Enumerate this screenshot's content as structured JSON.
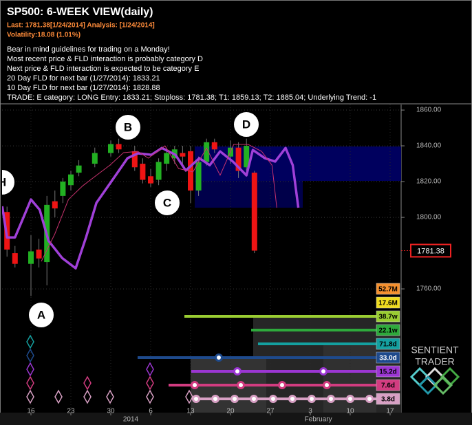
{
  "header": {
    "title": "SP500: 6-WEEK VIEW(daily)",
    "last": "Last: 1781.38[1/24/2014] Analysis: [1/24/2014]",
    "volatility": "Volatility:18.08 (1.01%)",
    "notes": [
      "Bear in mind guidelines for trading on a Monday!",
      "Most recent price & FLD interaction is probably category D",
      "Next price & FLD interaction is expected to be category E",
      "20 Day FLD for next bar (1/27/2014): 1833.21",
      "10 Day FLD for next bar (1/27/2014): 1828.88",
      "TRADE: E category: LONG Entry: 1833.21; Stoploss: 1781.38; T1: 1859.13; T2: 1885.04; Underlying Trend: -1"
    ]
  },
  "chart_data": {
    "type": "candlestick",
    "xlim": [
      -3.62,
      46.38
    ],
    "ylim": [
      1690.8,
      1863.1
    ],
    "grid": true,
    "xticks": [
      {
        "value": 0,
        "label": "16"
      },
      {
        "value": 5,
        "label": "23"
      },
      {
        "value": 10,
        "label": "30"
      },
      {
        "value": 15,
        "label": "6"
      },
      {
        "value": 20,
        "label": "13"
      },
      {
        "value": 25,
        "label": "20"
      },
      {
        "value": 30,
        "label": "27"
      },
      {
        "value": 35,
        "label": "3"
      },
      {
        "value": 40,
        "label": "10"
      },
      {
        "value": 45,
        "label": "17"
      }
    ],
    "period_labels": [
      {
        "value": 12.5,
        "label": "2014"
      },
      {
        "value": 36,
        "label": "February"
      }
    ],
    "yticks": [
      {
        "value": 1760,
        "label": "1760.00"
      },
      {
        "value": 1800,
        "label": "1800.00"
      },
      {
        "value": 1820,
        "label": "1820.00"
      },
      {
        "value": 1840,
        "label": "1840.00"
      },
      {
        "value": 1860,
        "label": "1860.00"
      }
    ],
    "last_price": {
      "value": 1781.38,
      "label": "1781.38"
    },
    "up_color": "#22b022",
    "down_color": "#ee1414",
    "candles": {
      "x": [
        -3,
        -2,
        0,
        1,
        2,
        3,
        4,
        5,
        6,
        8,
        10,
        11,
        13,
        14,
        15,
        16,
        17,
        18,
        19,
        20,
        21,
        22,
        23,
        25,
        26,
        27,
        28
      ],
      "open": [
        1803,
        1780,
        1774,
        1782,
        1775,
        1809,
        1812,
        1818,
        1825,
        1830,
        1836,
        1841,
        1837,
        1830,
        1823,
        1821,
        1830,
        1833,
        1836,
        1837,
        1815,
        1831,
        1842,
        1834,
        1839,
        1828,
        1825
      ],
      "high": [
        1806,
        1784,
        1790,
        1788,
        1812,
        1815,
        1822,
        1826,
        1832,
        1839,
        1843,
        1844,
        1840,
        1833,
        1827,
        1833,
        1838,
        1840,
        1840,
        1840,
        1834,
        1844,
        1844,
        1843,
        1842,
        1844,
        1826
      ],
      "low": [
        1778,
        1772,
        1756,
        1772,
        1762,
        1800,
        1808,
        1815,
        1823,
        1828,
        1834,
        1836,
        1826,
        1819,
        1817,
        1818,
        1826,
        1830,
        1830,
        1808,
        1812,
        1829,
        1836,
        1830,
        1822,
        1826,
        1780
      ],
      "close": [
        1782,
        1774,
        1781,
        1777,
        1807,
        1805,
        1820,
        1824,
        1829,
        1836,
        1841,
        1838,
        1828,
        1821,
        1819,
        1831,
        1836,
        1838,
        1834,
        1815,
        1831,
        1842,
        1838,
        1839,
        1826,
        1840,
        1781.38
      ]
    },
    "lines": [
      {
        "color": "#a040d8",
        "width": 3.5,
        "x": [
          -3.6,
          -3.0,
          -2.0,
          -0.9,
          0,
          1.1,
          2.2,
          3.9,
          5.6,
          6.9,
          8.2,
          10.3,
          12.1,
          13.4,
          15.1,
          16.4,
          18.1,
          19.4,
          21.1,
          22.4,
          23.7,
          25.3,
          27.0,
          27.8,
          29.3,
          30.6,
          31.9,
          32.8,
          33.5
        ],
        "values": [
          1806.2,
          1788.8,
          1788.8,
          1800.4,
          1810,
          1804.2,
          1786.9,
          1777.3,
          1771.5,
          1788.8,
          1808.1,
          1821.5,
          1833.1,
          1835.8,
          1835,
          1838.8,
          1835,
          1826.2,
          1833.1,
          1829.2,
          1836.9,
          1831.2,
          1823.5,
          1837.7,
          1833.1,
          1831.2,
          1838.8,
          1829.2,
          1805.4
        ]
      },
      {
        "color": "#c8326e",
        "width": 1,
        "x": [
          1.3,
          3.0,
          4.7,
          6.5,
          8.2,
          9.9,
          11.6,
          13.4,
          14.7,
          16.8,
          18.5,
          20.3,
          22.0,
          23.7,
          25.4,
          27.2,
          28.9,
          30.2,
          30.8
        ],
        "values": [
          1775.4,
          1790.8,
          1810,
          1817.7,
          1823.5,
          1829.2,
          1836.2,
          1836.9,
          1833.1,
          1840,
          1827.3,
          1825.4,
          1838.8,
          1823.5,
          1840.8,
          1840.8,
          1836.9,
          1829.2,
          1805.4
        ]
      }
    ],
    "annotations": [
      "H",
      "A",
      "B",
      "C",
      "D"
    ],
    "cycles": [
      {
        "label": "52.7M",
        "color": "#f5902e"
      },
      {
        "label": "17.6M",
        "color": "#f0dc1e"
      },
      {
        "label": "38.7w",
        "color": "#9acd32"
      },
      {
        "label": "22.1w",
        "color": "#2eaa3c"
      },
      {
        "label": "71.8d",
        "color": "#14a0a0"
      },
      {
        "label": "33.0d",
        "color": "#1e4a8c"
      },
      {
        "label": "15.2d",
        "color": "#9b36d2"
      },
      {
        "label": "7.6d",
        "color": "#d23c80"
      },
      {
        "label": "3.8d",
        "color": "#d8a0c4"
      }
    ]
  },
  "logo": [
    "SENTIENT",
    "TRADER"
  ]
}
